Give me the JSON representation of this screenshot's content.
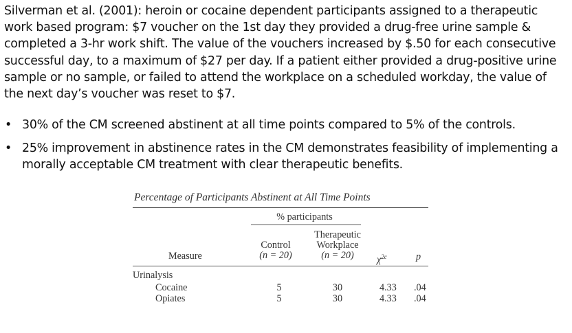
{
  "intro": {
    "text": "Silverman et al. (2001): heroin or cocaine dependent participants assigned to a therapeutic work based program: $7 voucher on the 1st day they provided a drug-free urine sample & completed a 3-hr work shift. The value of the vouchers increased by $.50 for each consecutive successful day, to a maximum of $27 per day.  If a patient either provided a drug-positive urine sample or no sample, or failed to attend the workplace on a scheduled workday, the value of the next day’s voucher was reset to $7."
  },
  "bullets": [
    {
      "marker": "•",
      "text": "30% of the CM screened abstinent at all time points compared to 5% of the controls."
    },
    {
      "marker": "•",
      "text": "25% improvement in abstinence rates in the CM demonstrates feasibility of implementing a morally acceptable CM treatment with clear therapeutic benefits."
    }
  ],
  "table": {
    "caption": "Percentage of Participants Abstinent at All Time Points",
    "group_header": "% participants",
    "headers": {
      "measure": "Measure",
      "control_l1": "Control",
      "control_l2": "(n = 20)",
      "therapeutic_l1": "Therapeutic",
      "therapeutic_l2": "Workplace",
      "therapeutic_l3": "(n = 20)",
      "chi_base": "χ",
      "chi_sup": "2c",
      "p": "p"
    },
    "section": "Urinalysis",
    "rows": [
      {
        "measure": "Cocaine",
        "control": "5",
        "therapeutic": "30",
        "chi": "4.33",
        "p": ".04"
      },
      {
        "measure": "Opiates",
        "control": "5",
        "therapeutic": "30",
        "chi": "4.33",
        "p": ".04"
      }
    ]
  }
}
